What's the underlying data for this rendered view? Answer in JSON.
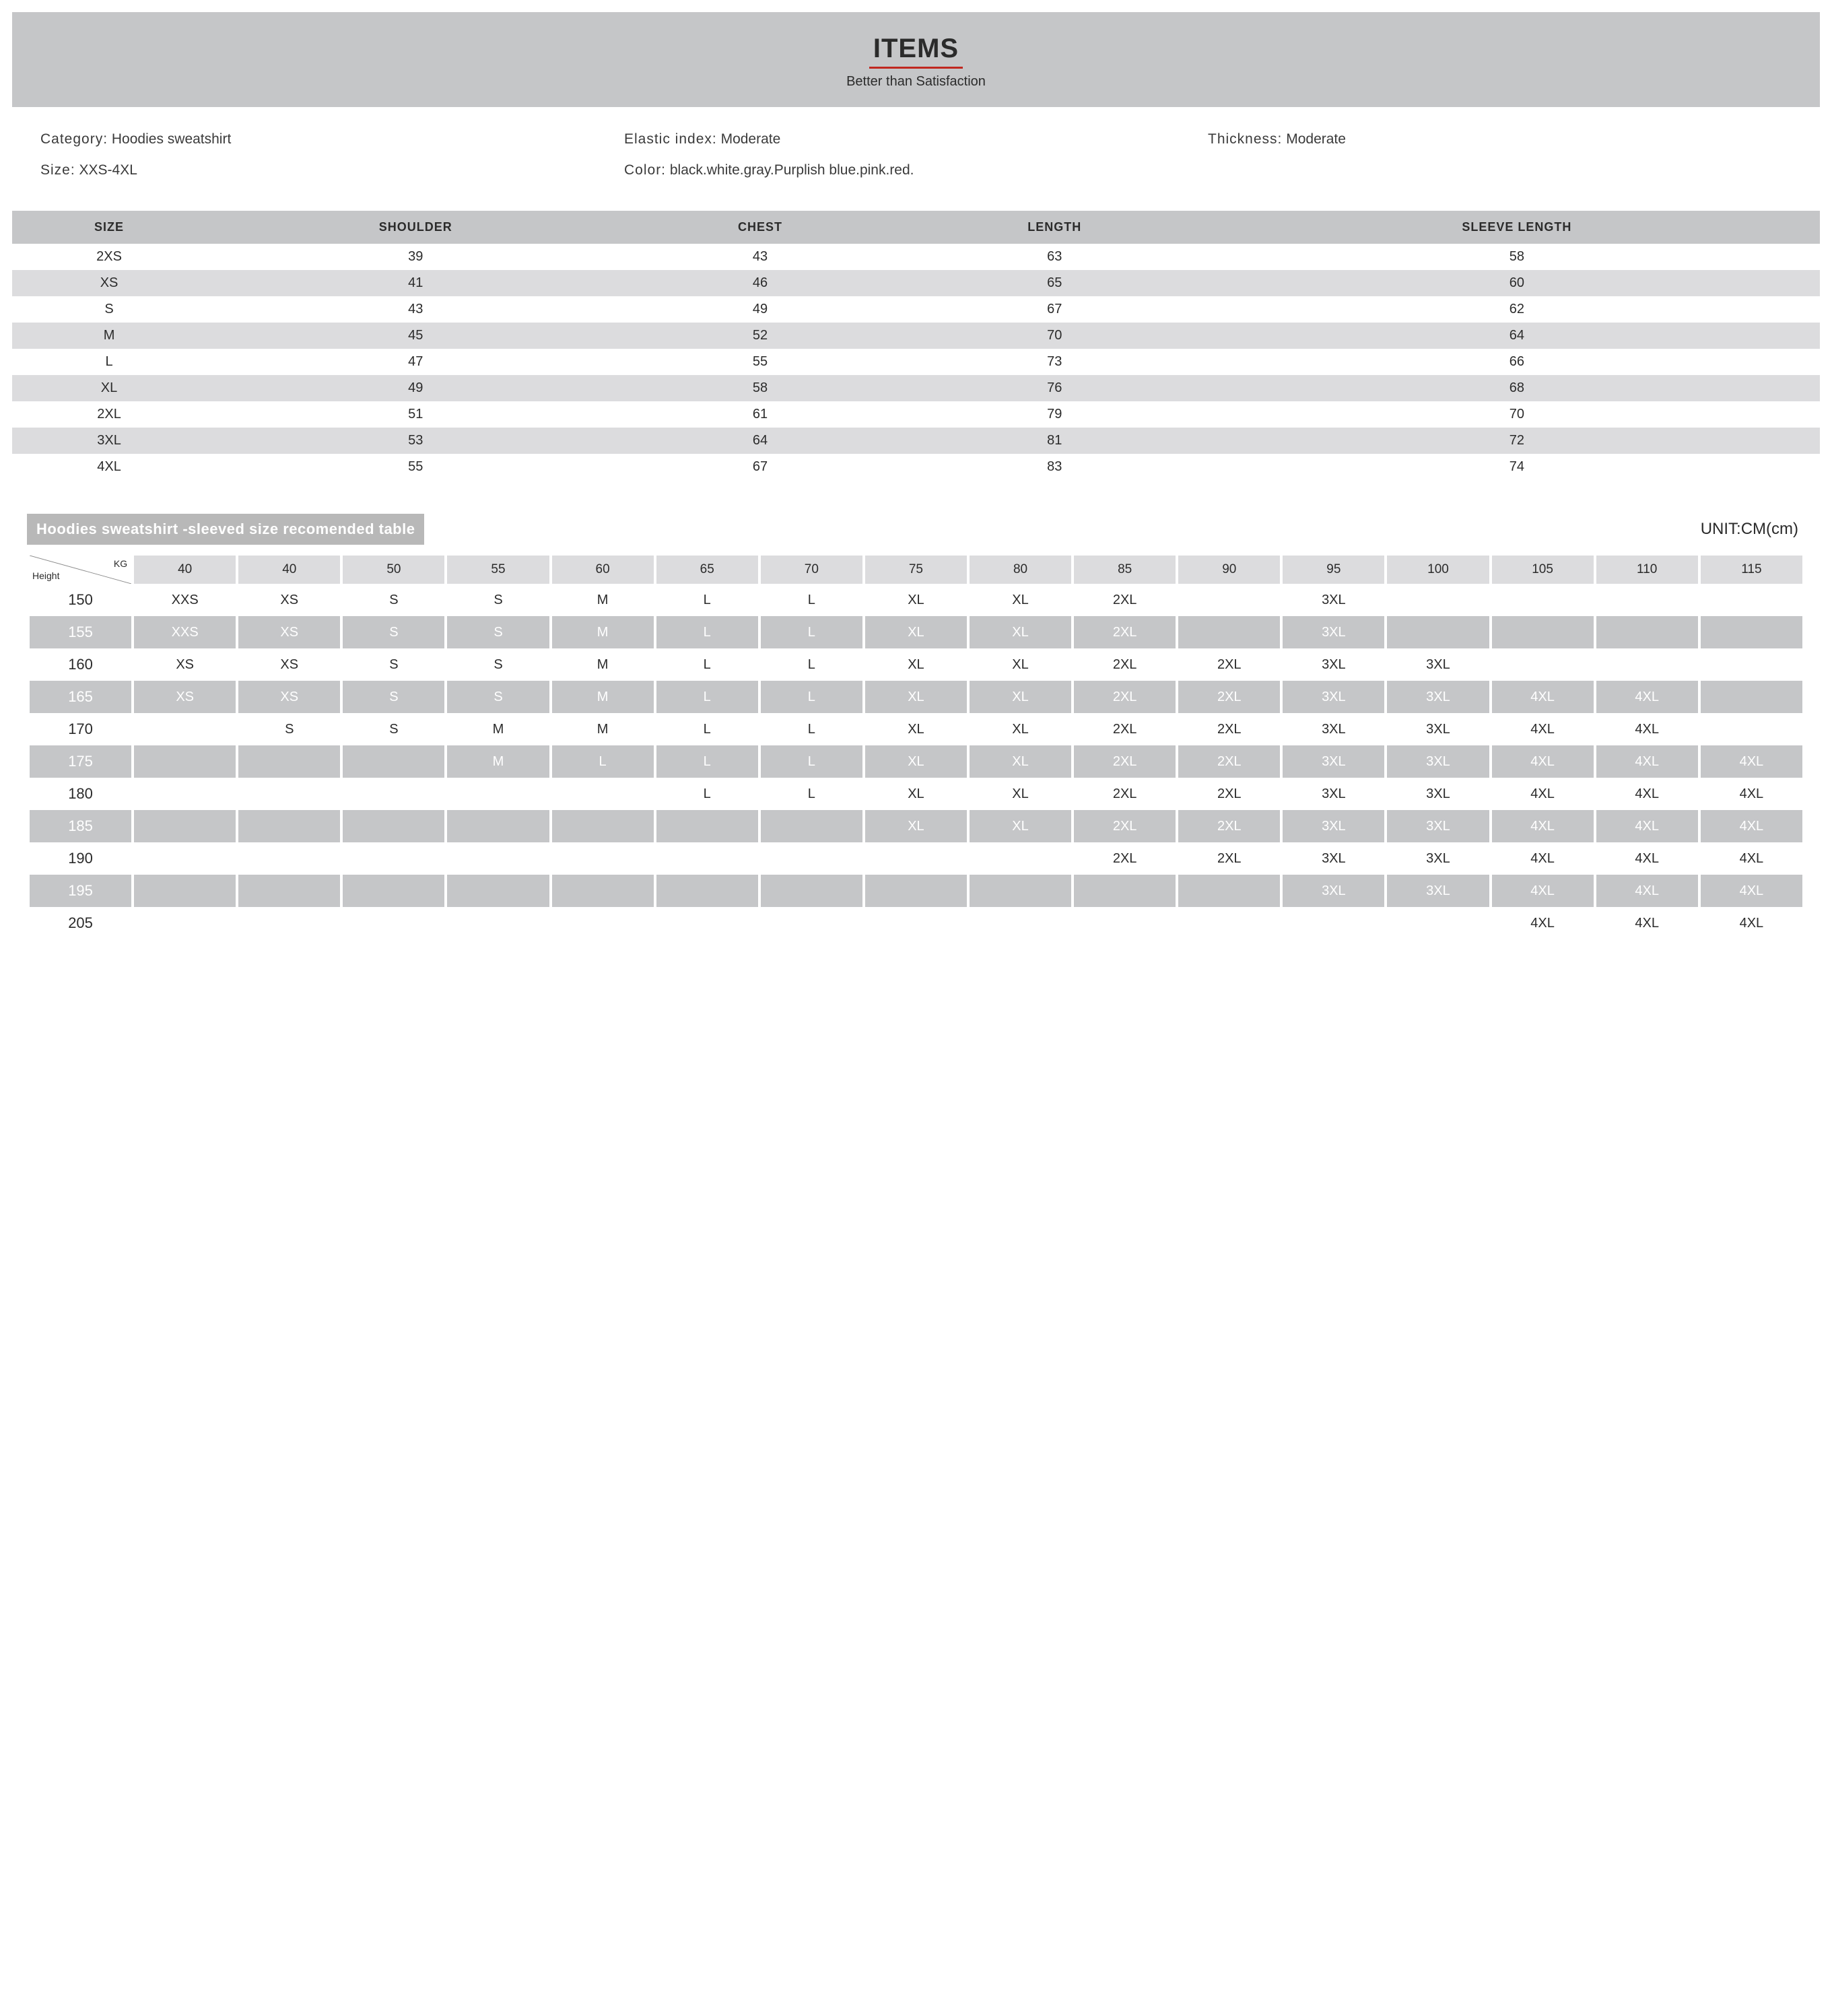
{
  "header": {
    "title": "ITEMS",
    "subtitle": "Better than Satisfaction"
  },
  "meta": {
    "category_label": "Category:",
    "category_value": "Hoodies sweatshirt",
    "elastic_label": "Elastic index:",
    "elastic_value": "Moderate",
    "thickness_label": "Thickness:",
    "thickness_value": "Moderate",
    "size_label": "Size:",
    "size_value": "XXS-4XL",
    "color_label": "Color:",
    "color_value": "black.white.gray.Purplish blue.pink.red."
  },
  "sizeTable": {
    "headers": [
      "SIZE",
      "SHOULDER",
      "CHEST",
      "LENGTH",
      "SLEEVE LENGTH"
    ],
    "rows": [
      {
        "stripe": false,
        "cells": [
          "2XS",
          "39",
          "43",
          "63",
          "58"
        ]
      },
      {
        "stripe": true,
        "cells": [
          "XS",
          "41",
          "46",
          "65",
          "60"
        ]
      },
      {
        "stripe": false,
        "cells": [
          "S",
          "43",
          "49",
          "67",
          "62"
        ]
      },
      {
        "stripe": true,
        "cells": [
          "M",
          "45",
          "52",
          "70",
          "64"
        ]
      },
      {
        "stripe": false,
        "cells": [
          "L",
          "47",
          "55",
          "73",
          "66"
        ]
      },
      {
        "stripe": true,
        "cells": [
          "XL",
          "49",
          "58",
          "76",
          "68"
        ]
      },
      {
        "stripe": false,
        "cells": [
          "2XL",
          "51",
          "61",
          "79",
          "70"
        ]
      },
      {
        "stripe": true,
        "cells": [
          "3XL",
          "53",
          "64",
          "81",
          "72"
        ]
      },
      {
        "stripe": false,
        "cells": [
          "4XL",
          "55",
          "67",
          "83",
          "74"
        ]
      }
    ]
  },
  "recTable": {
    "title": "Hoodies sweatshirt -sleeved size recomended table",
    "unit": "UNIT:CM(cm)",
    "corner_kg": "KG",
    "corner_height": "Height",
    "weights": [
      "40",
      "40",
      "50",
      "55",
      "60",
      "65",
      "70",
      "75",
      "80",
      "85",
      "90",
      "95",
      "100",
      "105",
      "110",
      "115"
    ],
    "rows": [
      {
        "gray": false,
        "height": "150",
        "cells": [
          "XXS",
          "XS",
          "S",
          "S",
          "M",
          "L",
          "L",
          "XL",
          "XL",
          "2XL",
          "",
          "3XL",
          "",
          "",
          "",
          ""
        ]
      },
      {
        "gray": true,
        "height": "155",
        "cells": [
          "XXS",
          "XS",
          "S",
          "S",
          "M",
          "L",
          "L",
          "XL",
          "XL",
          "2XL",
          "",
          "3XL",
          "",
          "",
          "",
          ""
        ]
      },
      {
        "gray": false,
        "height": "160",
        "cells": [
          "XS",
          "XS",
          "S",
          "S",
          "M",
          "L",
          "L",
          "XL",
          "XL",
          "2XL",
          "2XL",
          "3XL",
          "3XL",
          "",
          "",
          ""
        ]
      },
      {
        "gray": true,
        "height": "165",
        "cells": [
          "XS",
          "XS",
          "S",
          "S",
          "M",
          "L",
          "L",
          "XL",
          "XL",
          "2XL",
          "2XL",
          "3XL",
          "3XL",
          "4XL",
          "4XL",
          ""
        ]
      },
      {
        "gray": false,
        "height": "170",
        "cells": [
          "",
          "S",
          "S",
          "M",
          "M",
          "L",
          "L",
          "XL",
          "XL",
          "2XL",
          "2XL",
          "3XL",
          "3XL",
          "4XL",
          "4XL",
          ""
        ]
      },
      {
        "gray": true,
        "height": "175",
        "cells": [
          "",
          "",
          "",
          "M",
          "L",
          "L",
          "L",
          "XL",
          "XL",
          "2XL",
          "2XL",
          "3XL",
          "3XL",
          "4XL",
          "4XL",
          "4XL"
        ]
      },
      {
        "gray": false,
        "height": "180",
        "cells": [
          "",
          "",
          "",
          "",
          "",
          "L",
          "L",
          "XL",
          "XL",
          "2XL",
          "2XL",
          "3XL",
          "3XL",
          "4XL",
          "4XL",
          "4XL"
        ]
      },
      {
        "gray": true,
        "height": "185",
        "cells": [
          "",
          "",
          "",
          "",
          "",
          "",
          "",
          "XL",
          "XL",
          "2XL",
          "2XL",
          "3XL",
          "3XL",
          "4XL",
          "4XL",
          "4XL"
        ]
      },
      {
        "gray": false,
        "height": "190",
        "cells": [
          "",
          "",
          "",
          "",
          "",
          "",
          "",
          "",
          "",
          "2XL",
          "2XL",
          "3XL",
          "3XL",
          "4XL",
          "4XL",
          "4XL"
        ]
      },
      {
        "gray": true,
        "height": "195",
        "cells": [
          "",
          "",
          "",
          "",
          "",
          "",
          "",
          "",
          "",
          "",
          "",
          "3XL",
          "3XL",
          "4XL",
          "4XL",
          "4XL"
        ]
      },
      {
        "gray": false,
        "height": "205",
        "cells": [
          "",
          "",
          "",
          "",
          "",
          "",
          "",
          "",
          "",
          "",
          "",
          "",
          "",
          "4XL",
          "4XL",
          "4XL"
        ]
      }
    ]
  }
}
